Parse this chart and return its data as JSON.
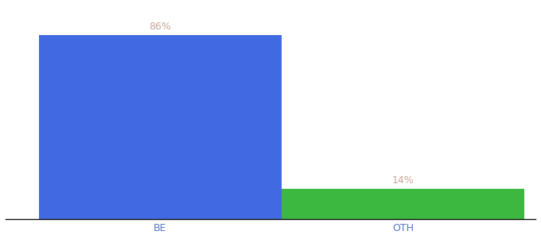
{
  "categories": [
    "BE",
    "OTH"
  ],
  "values": [
    86,
    14
  ],
  "bar_colors": [
    "#4169E1",
    "#3CB840"
  ],
  "label_color": "#c8a898",
  "be_tick_color": "#5578cc",
  "oth_tick_color": "#5578cc",
  "ylim": [
    0,
    100
  ],
  "background_color": "#ffffff",
  "bar_width": 0.55,
  "label_fontsize": 9,
  "tick_fontsize": 9,
  "x_positions": [
    0.3,
    0.85
  ]
}
